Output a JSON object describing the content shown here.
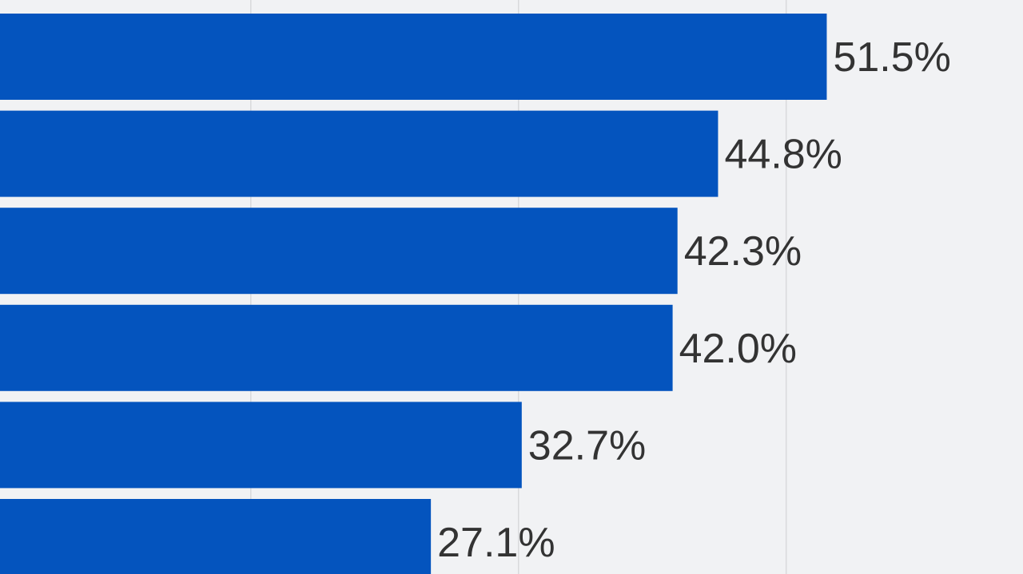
{
  "chart_data": {
    "type": "bar",
    "orientation": "horizontal",
    "categories": [
      "",
      "",
      "",
      "",
      "",
      ""
    ],
    "values": [
      51.5,
      44.8,
      42.3,
      42.0,
      32.7,
      27.1
    ],
    "data_labels": [
      "51.5%",
      "44.8%",
      "42.3%",
      "42.0%",
      "32.7%",
      "27.1%"
    ],
    "unit": "%",
    "title": "",
    "xlabel": "",
    "ylabel": "",
    "grid": true,
    "legend": "none"
  },
  "colors": {
    "background": "#f1f2f4",
    "bar": "#0454be",
    "gridline": "#d9dadc",
    "label_text": "#333333"
  }
}
